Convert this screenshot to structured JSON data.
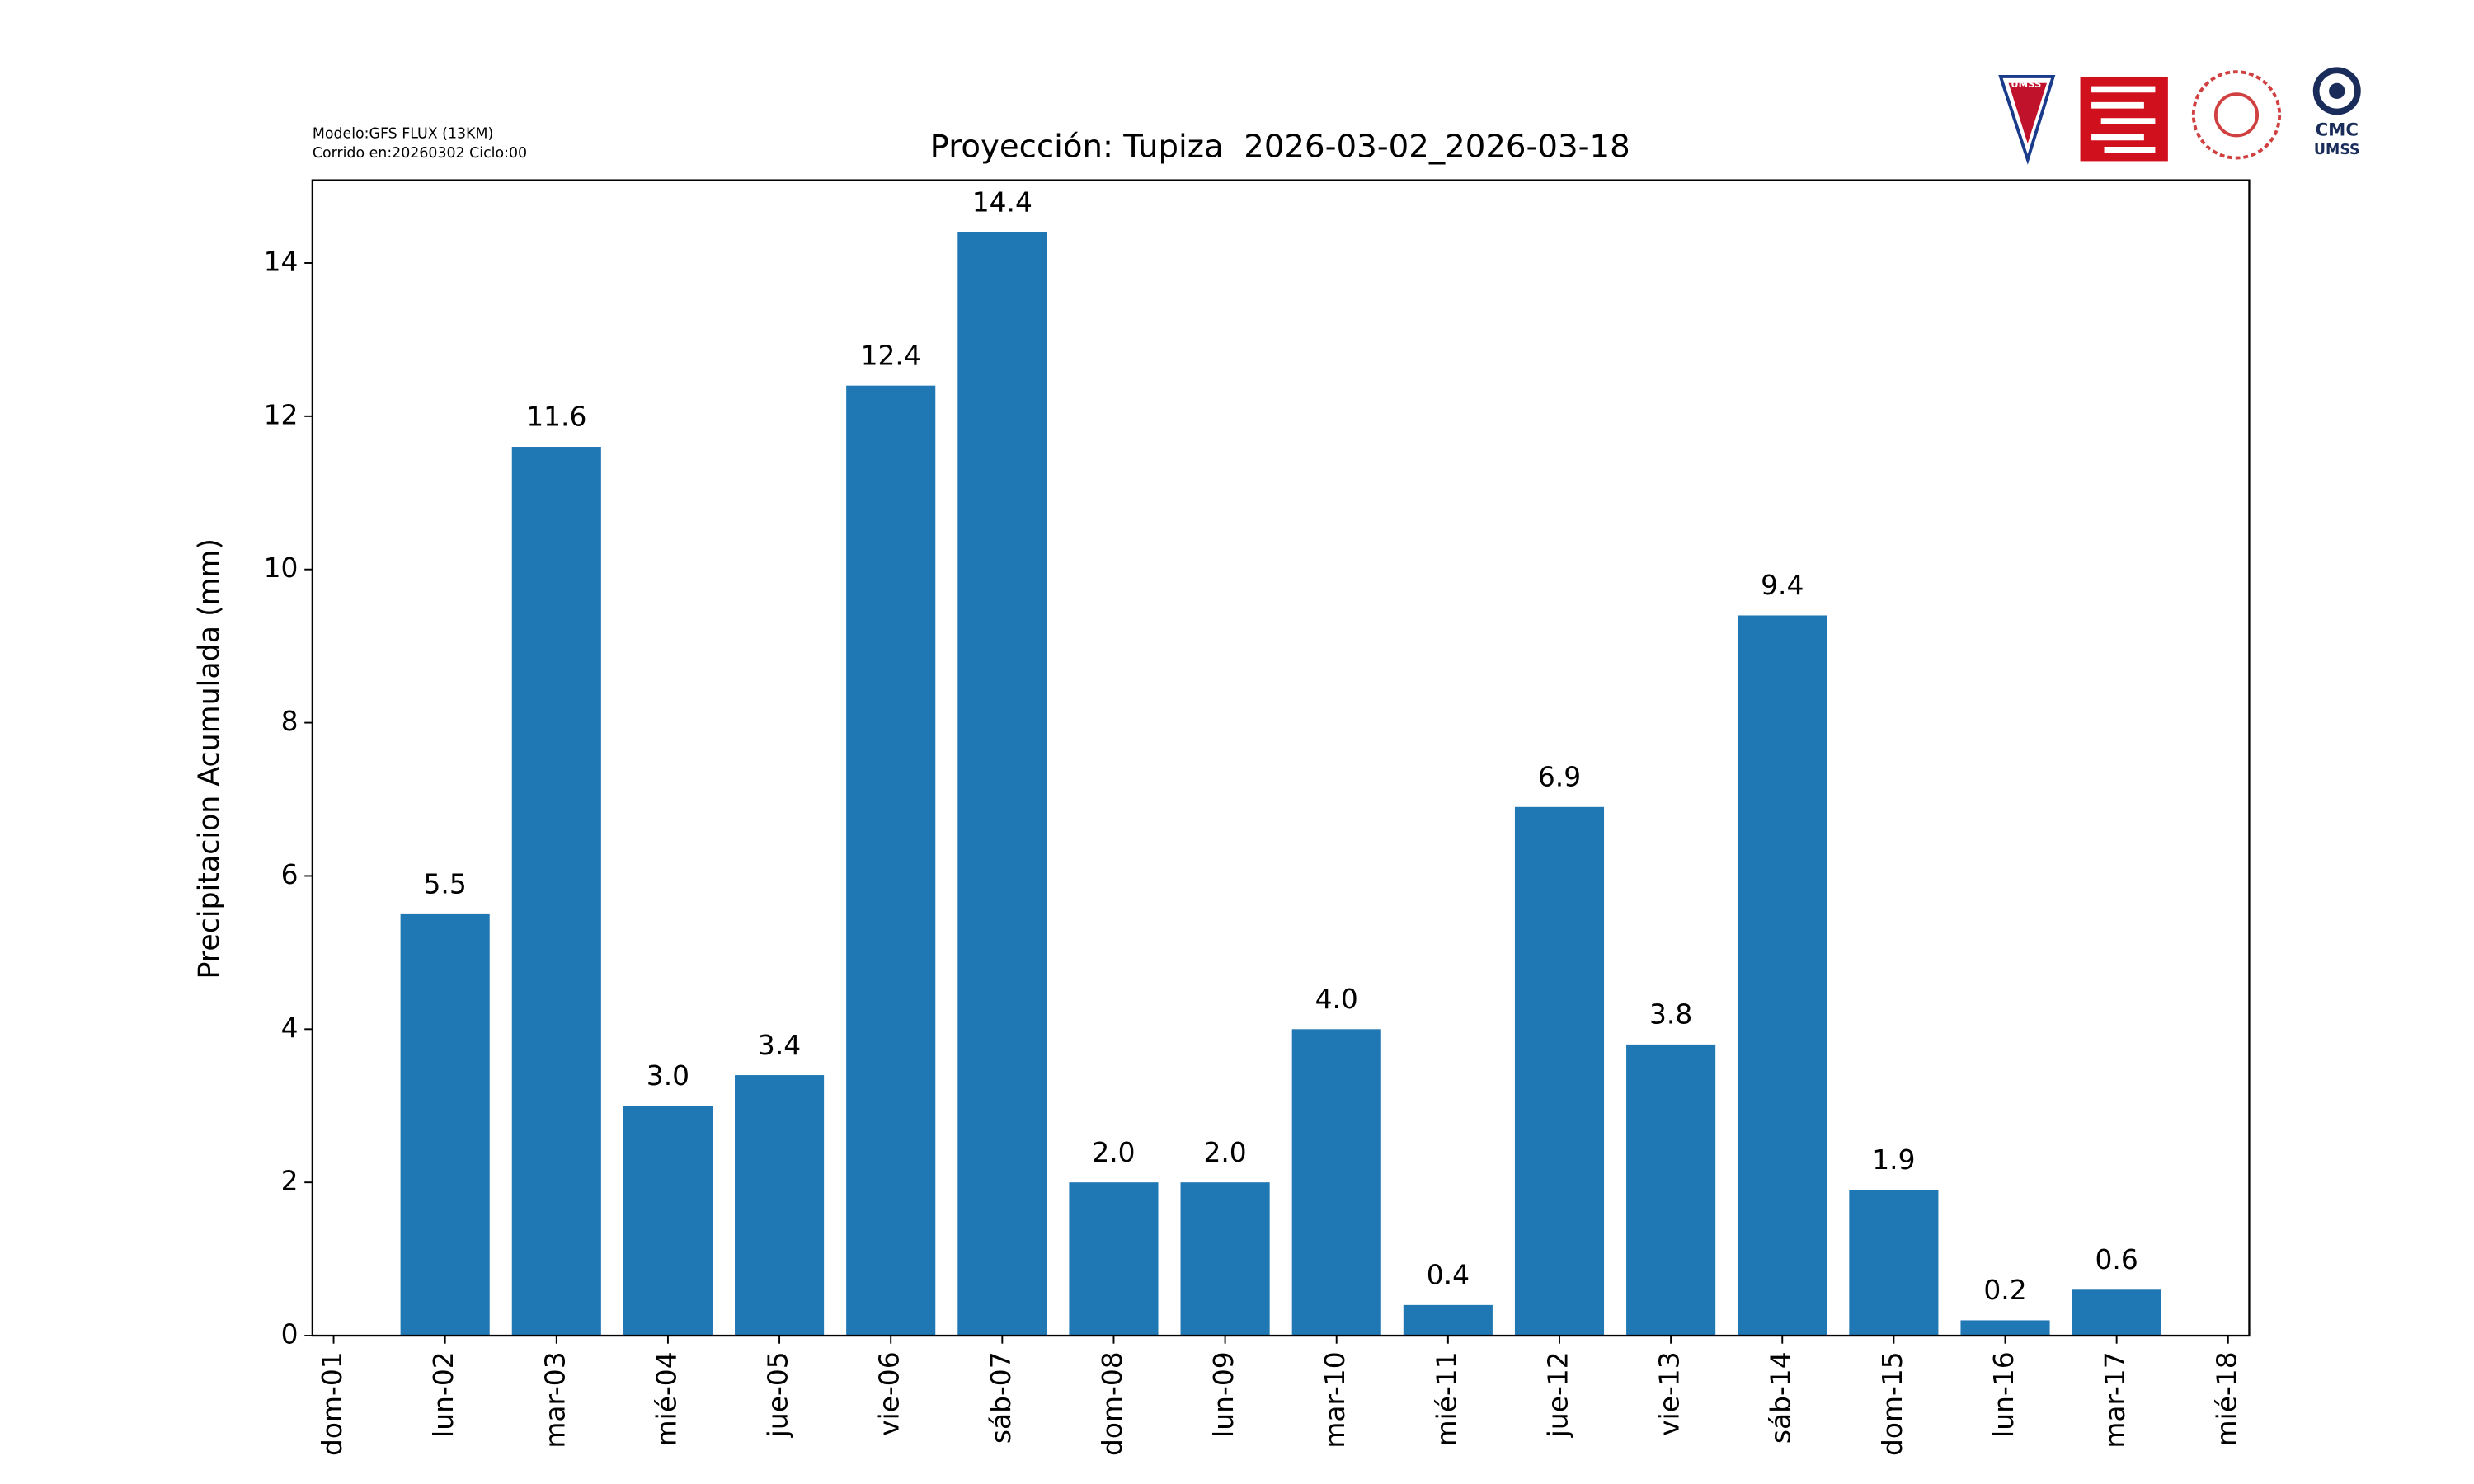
{
  "chart_data": {
    "type": "bar",
    "title": "Proyección: Tupiza  2026-03-02_2026-03-18",
    "notes": [
      "Modelo:GFS FLUX (13KM)",
      "Corrido en:20260302 Ciclo:00"
    ],
    "y_label": "Precipitacion Acumulada (mm)",
    "categories": [
      "dom-01",
      "lun-02",
      "mar-03",
      "mié-04",
      "jue-05",
      "vie-06",
      "sáb-07",
      "dom-08",
      "lun-09",
      "mar-10",
      "mié-11",
      "jue-12",
      "vie-13",
      "sáb-14",
      "dom-15",
      "lun-16",
      "mar-17",
      "mié-18"
    ],
    "values": [
      null,
      5.5,
      11.6,
      3.0,
      3.4,
      12.4,
      14.4,
      2.0,
      2.0,
      4.0,
      0.4,
      6.9,
      3.8,
      9.4,
      1.9,
      0.2,
      0.6,
      null
    ],
    "value_labels": [
      null,
      "5.5",
      "11.6",
      "3.0",
      "3.4",
      "12.4",
      "14.4",
      "2.0",
      "2.0",
      "4.0",
      "0.4",
      "6.9",
      "3.8",
      "9.4",
      "1.9",
      "0.2",
      "0.6",
      null
    ],
    "color": "#1f77b4",
    "ylim": [
      0,
      15.08
    ],
    "yticks": [
      0,
      2,
      4,
      6,
      8,
      10,
      12,
      14
    ],
    "logos": [
      "UMSS",
      "CMC",
      "UMSS"
    ]
  }
}
